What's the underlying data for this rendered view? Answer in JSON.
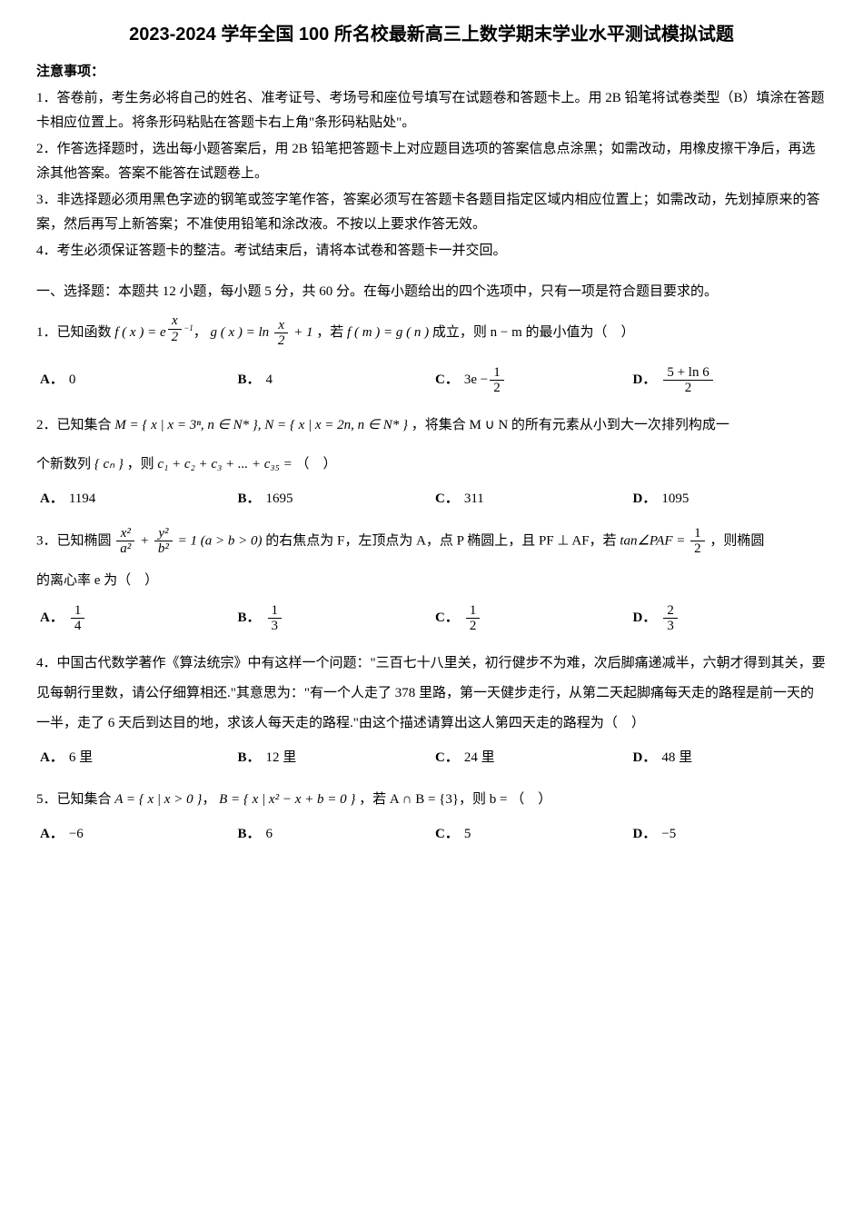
{
  "title": "2023-2024 学年全国 100 所名校最新高三上数学期末学业水平测试模拟试题",
  "notice_header": "注意事项：",
  "notices": [
    "1．答卷前，考生务必将自己的姓名、准考证号、考场号和座位号填写在试题卷和答题卡上。用 2B 铅笔将试卷类型（B）填涂在答题卡相应位置上。将条形码粘贴在答题卡右上角\"条形码粘贴处\"。",
    "2．作答选择题时，选出每小题答案后，用 2B 铅笔把答题卡上对应题目选项的答案信息点涂黑；如需改动，用橡皮擦干净后，再选涂其他答案。答案不能答在试题卷上。",
    "3．非选择题必须用黑色字迹的钢笔或签字笔作答，答案必须写在答题卡各题目指定区域内相应位置上；如需改动，先划掉原来的答案，然后再写上新答案；不准使用铅笔和涂改液。不按以上要求作答无效。",
    "4．考生必须保证答题卡的整洁。考试结束后，请将本试卷和答题卡一并交回。"
  ],
  "section_header": "一、选择题：本题共 12 小题，每小题 5 分，共 60 分。在每小题给出的四个选项中，只有一项是符合题目要求的。",
  "q1": {
    "stem_pre": "1．已知函数 ",
    "stem_mid": "，若 ",
    "stem_post": " 成立，则 n − m 的最小值为（　）",
    "options": {
      "A": "0",
      "B": "4"
    },
    "optC_num": "1",
    "optC_den": "2",
    "optC_pre": "3e − ",
    "optD_num": "5 + ln 6",
    "optD_den": "2"
  },
  "q2": {
    "stem_pre": "2．已知集合 ",
    "stem_mid": "，将集合 M ∪ N 的所有元素从小到大一次排列构成一",
    "stem_line2_pre": "个新数列 ",
    "stem_line2_mid": "，则 ",
    "stem_line2_post": "（　）",
    "sum_expr": "c₁ + c₂ + c₃ + ... + c₃₅ =",
    "set_M": "M = { x | x = 3ⁿ, n ∈ N* }, N = { x | x = 2n, n ∈ N* }",
    "cn": "{ cₙ }",
    "options": {
      "A": "1194",
      "B": "1695",
      "C": "311",
      "D": "1095"
    }
  },
  "q3": {
    "stem_pre": "3．已知椭圆 ",
    "ellipse_eq_num_x": "x²",
    "ellipse_eq_den_a": "a²",
    "ellipse_eq_num_y": "y²",
    "ellipse_eq_den_b": "b²",
    "ellipse_cond": " = 1 (a > b > 0) ",
    "stem_mid": "的右焦点为 F，左顶点为 A，点 P 椭圆上，且 PF ⊥ AF，若 ",
    "tan_expr_pre": "tan∠PAF = ",
    "tan_num": "1",
    "tan_den": "2",
    "stem_post": "，则椭圆",
    "line2": "的离心率 e 为（　）",
    "optA_num": "1",
    "optA_den": "4",
    "optB_num": "1",
    "optB_den": "3",
    "optC_num": "1",
    "optC_den": "2",
    "optD_num": "2",
    "optD_den": "3"
  },
  "q4": {
    "stem": "4．中国古代数学著作《算法统宗》中有这样一个问题：\"三百七十八里关，初行健步不为难，次后脚痛递减半，六朝才得到其关，要见每朝行里数，请公仔细算相还.\"其意思为：\"有一个人走了 378 里路，第一天健步走行，从第二天起脚痛每天走的路程是前一天的一半，走了 6 天后到达目的地，求该人每天走的路程.\"由这个描述请算出这人第四天走的路程为（　）",
    "options": {
      "A": "6 里",
      "B": "12 里",
      "C": "24 里",
      "D": "48 里"
    }
  },
  "q5": {
    "stem_pre": "5．已知集合 ",
    "set_A": "A = { x | x > 0 }",
    "set_B": "B = { x | x² − x + b = 0 }",
    "stem_mid": "，若 A ∩ B = {3}，则 b = （　）",
    "options": {
      "A": "−6",
      "B": "6",
      "C": "5",
      "D": "−5"
    }
  }
}
